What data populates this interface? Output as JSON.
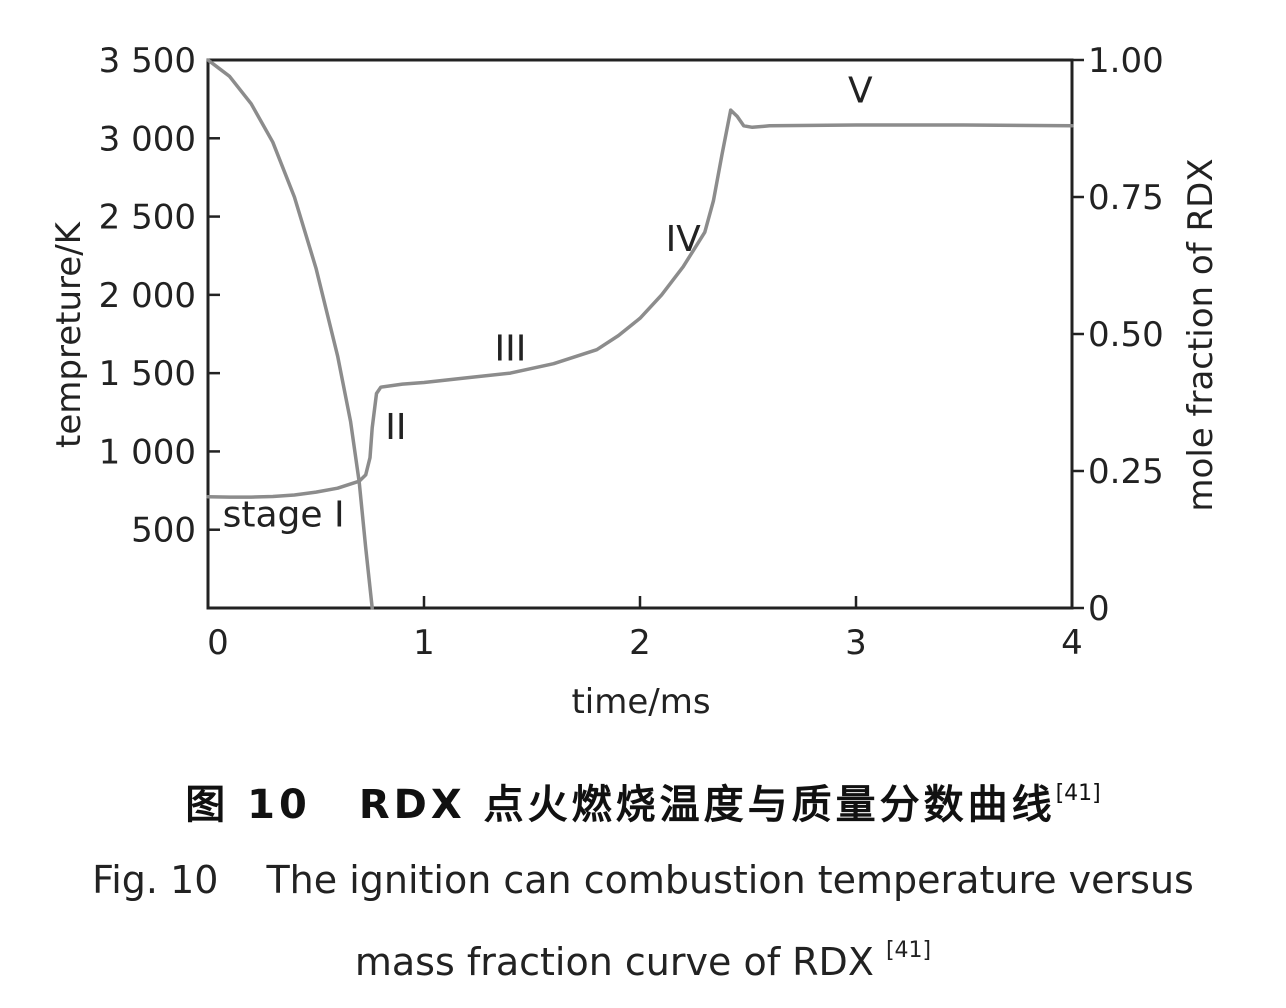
{
  "chart_data": {
    "type": "line",
    "xlabel": "time/ms",
    "ylabel_left": "tempreture/K",
    "ylabel_right": "mole fraction of RDX",
    "xlim": [
      0,
      4
    ],
    "ylim_left": [
      0,
      3500
    ],
    "ylim_right": [
      0,
      1.0
    ],
    "x_ticks": [
      "0",
      "1",
      "2",
      "3",
      "4"
    ],
    "y_left_ticks": [
      "500",
      "1 000",
      "1 500",
      "2 000",
      "2 500",
      "3 000",
      "3 500"
    ],
    "y_right_ticks": [
      "0",
      "0.25",
      "0.50",
      "0.75",
      "1.00"
    ],
    "grid": false,
    "series": [
      {
        "axis": "left",
        "x": [
          0,
          0.1,
          0.2,
          0.3,
          0.4,
          0.5,
          0.6,
          0.7,
          0.73,
          0.75,
          0.76,
          0.78,
          0.8,
          0.9,
          1.0,
          1.2,
          1.4,
          1.6,
          1.8,
          1.9,
          2.0,
          2.1,
          2.2,
          2.3,
          2.34,
          2.38,
          2.42,
          2.45,
          2.48,
          2.52,
          2.6,
          3.0,
          3.5,
          4.0
        ],
        "y": [
          710,
          708,
          708,
          712,
          722,
          740,
          765,
          810,
          850,
          960,
          1150,
          1370,
          1410,
          1430,
          1440,
          1470,
          1500,
          1560,
          1650,
          1740,
          1850,
          2000,
          2180,
          2400,
          2600,
          2900,
          3180,
          3140,
          3080,
          3070,
          3080,
          3085,
          3085,
          3080
        ]
      },
      {
        "axis": "right",
        "x": [
          0,
          0.05,
          0.1,
          0.2,
          0.3,
          0.4,
          0.5,
          0.6,
          0.66,
          0.7,
          0.73,
          0.76
        ],
        "y": [
          1.0,
          0.985,
          0.97,
          0.92,
          0.85,
          0.75,
          0.62,
          0.46,
          0.34,
          0.23,
          0.11,
          0.0
        ]
      }
    ],
    "annotations": [
      {
        "text": "stage I",
        "x": 0.35,
        "y": 520
      },
      {
        "text": "II",
        "x": 0.87,
        "y": 1080
      },
      {
        "text": "III",
        "x": 1.4,
        "y": 1580
      },
      {
        "text": "IV",
        "x": 2.2,
        "y": 2280
      },
      {
        "text": "V",
        "x": 3.02,
        "y": 3230
      }
    ],
    "color": "#8c8c8c"
  },
  "caption": {
    "cn_label": "图 10",
    "cn_text": "RDX 点火燃烧温度与质量分数曲线",
    "cn_ref": "[41]",
    "en_label": "Fig. 10",
    "en_line1": "The ignition can combustion temperature versus",
    "en_line2": "mass fraction curve of RDX",
    "en_ref": "[41]"
  }
}
